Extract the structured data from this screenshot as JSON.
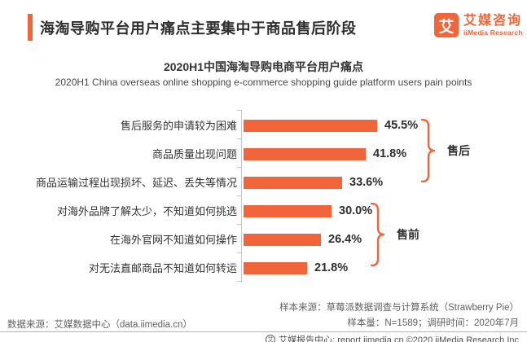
{
  "header": {
    "title": "海淘导购平台用户痛点主要集中于商品售后阶段",
    "logo": {
      "icon_char": "艾",
      "name_cn": "艾媒咨询",
      "name_en": "iiMedia Research"
    }
  },
  "chart_data": {
    "type": "bar",
    "orientation": "horizontal",
    "title": "2020H1中国海淘导购电商平台用户痛点",
    "subtitle": "2020H1 China overseas online shopping e-commerce shopping guide platform users pain points",
    "categories": [
      "售后服务的申请较为困难",
      "商品质量出现问题",
      "商品运输过程出现损坏、延迟、丢失等情况",
      "对海外品牌了解太少，不知道如何挑选",
      "在海外官网不知道如何操作",
      "对无法直邮商品不知道如何转运"
    ],
    "values": [
      45.5,
      41.8,
      33.6,
      30.0,
      26.4,
      21.8
    ],
    "value_labels": [
      "45.5%",
      "41.8%",
      "33.6%",
      "30.0%",
      "26.4%",
      "21.8%"
    ],
    "groups": [
      {
        "label": "售后",
        "from": 0,
        "to": 2
      },
      {
        "label": "售前",
        "from": 3,
        "to": 5
      }
    ],
    "bar_color": "#F2643A",
    "xlim": [
      0,
      50
    ],
    "grid": false,
    "legend": "none"
  },
  "footnotes": {
    "sample_source": "样本来源：草莓派数据调查与计算系统（Strawberry Pie）",
    "sample_size": "样本量：N=1589；调研时间：2020年7月",
    "data_source": "数据来源：艾媒数据中心（data.iimedia.cn）"
  },
  "footer": {
    "icon_char": "艾",
    "text": "艾媒报告中心: report.iimedia.cn ©2020 iiMedia Research Inc"
  }
}
